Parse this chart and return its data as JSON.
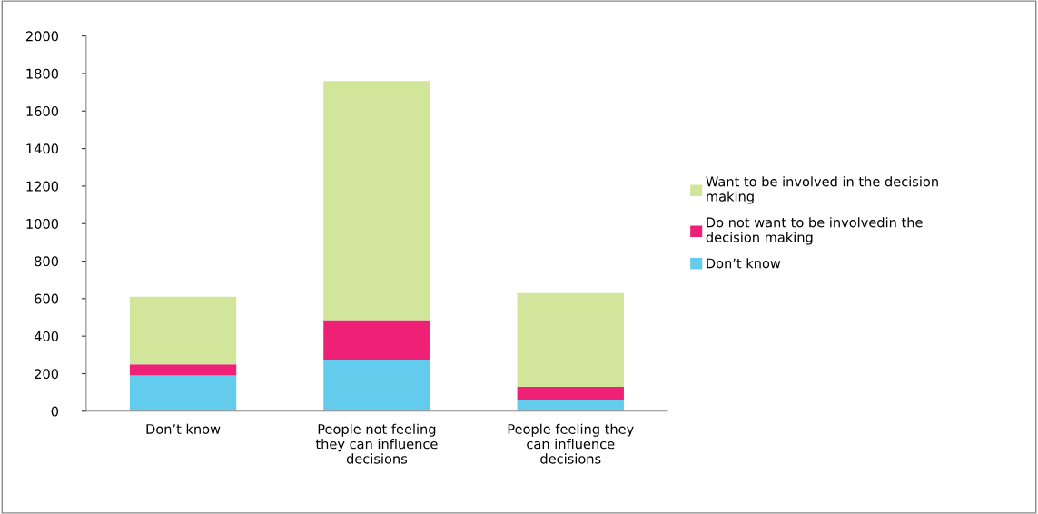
{
  "chart_data": {
    "type": "bar",
    "stacked": true,
    "categories": [
      "Don’t know",
      "People not feeling they can influence decisions",
      "People feeling they can influence decisions"
    ],
    "series": [
      {
        "name": "Don’t know",
        "color": "#63cbec",
        "values": [
          190,
          275,
          60
        ]
      },
      {
        "name": "Do not want to be involvedin the decision making",
        "color": "#ee2176",
        "values": [
          60,
          210,
          70
        ]
      },
      {
        "name": "Want to be involved in the decision making",
        "color": "#d1e59b",
        "values": [
          360,
          1275,
          500
        ]
      }
    ],
    "ylim": [
      0,
      2000
    ],
    "yticks": [
      0,
      200,
      400,
      600,
      800,
      1000,
      1200,
      1400,
      1600,
      1800,
      2000
    ],
    "grid": false,
    "legend": "right"
  }
}
